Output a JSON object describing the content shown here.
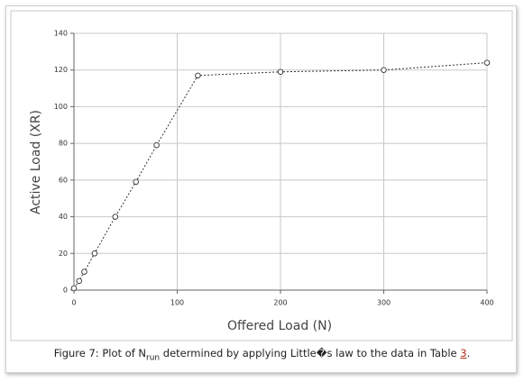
{
  "chart_data": {
    "type": "line",
    "x_label": "Offered Load (N)",
    "y_label": "Active Load (XR)",
    "x": [
      0,
      5,
      10,
      20,
      40,
      60,
      80,
      120,
      200,
      300,
      400
    ],
    "values": [
      1,
      5,
      10,
      20,
      40,
      59,
      79,
      117,
      119,
      120,
      124
    ],
    "color": "#333333",
    "xlim": [
      0,
      400
    ],
    "xticks": [
      0,
      100,
      200,
      300,
      400
    ],
    "ylim": [
      0,
      140
    ],
    "yticks": [
      0,
      20,
      40,
      60,
      80,
      100,
      120,
      140
    ],
    "grid": true
  },
  "caption": {
    "prefix": "Figure 7: Plot of N",
    "subscript": "run",
    "middle": " determined by applying Little�s law to the data in Table ",
    "link": "3",
    "suffix": "."
  }
}
